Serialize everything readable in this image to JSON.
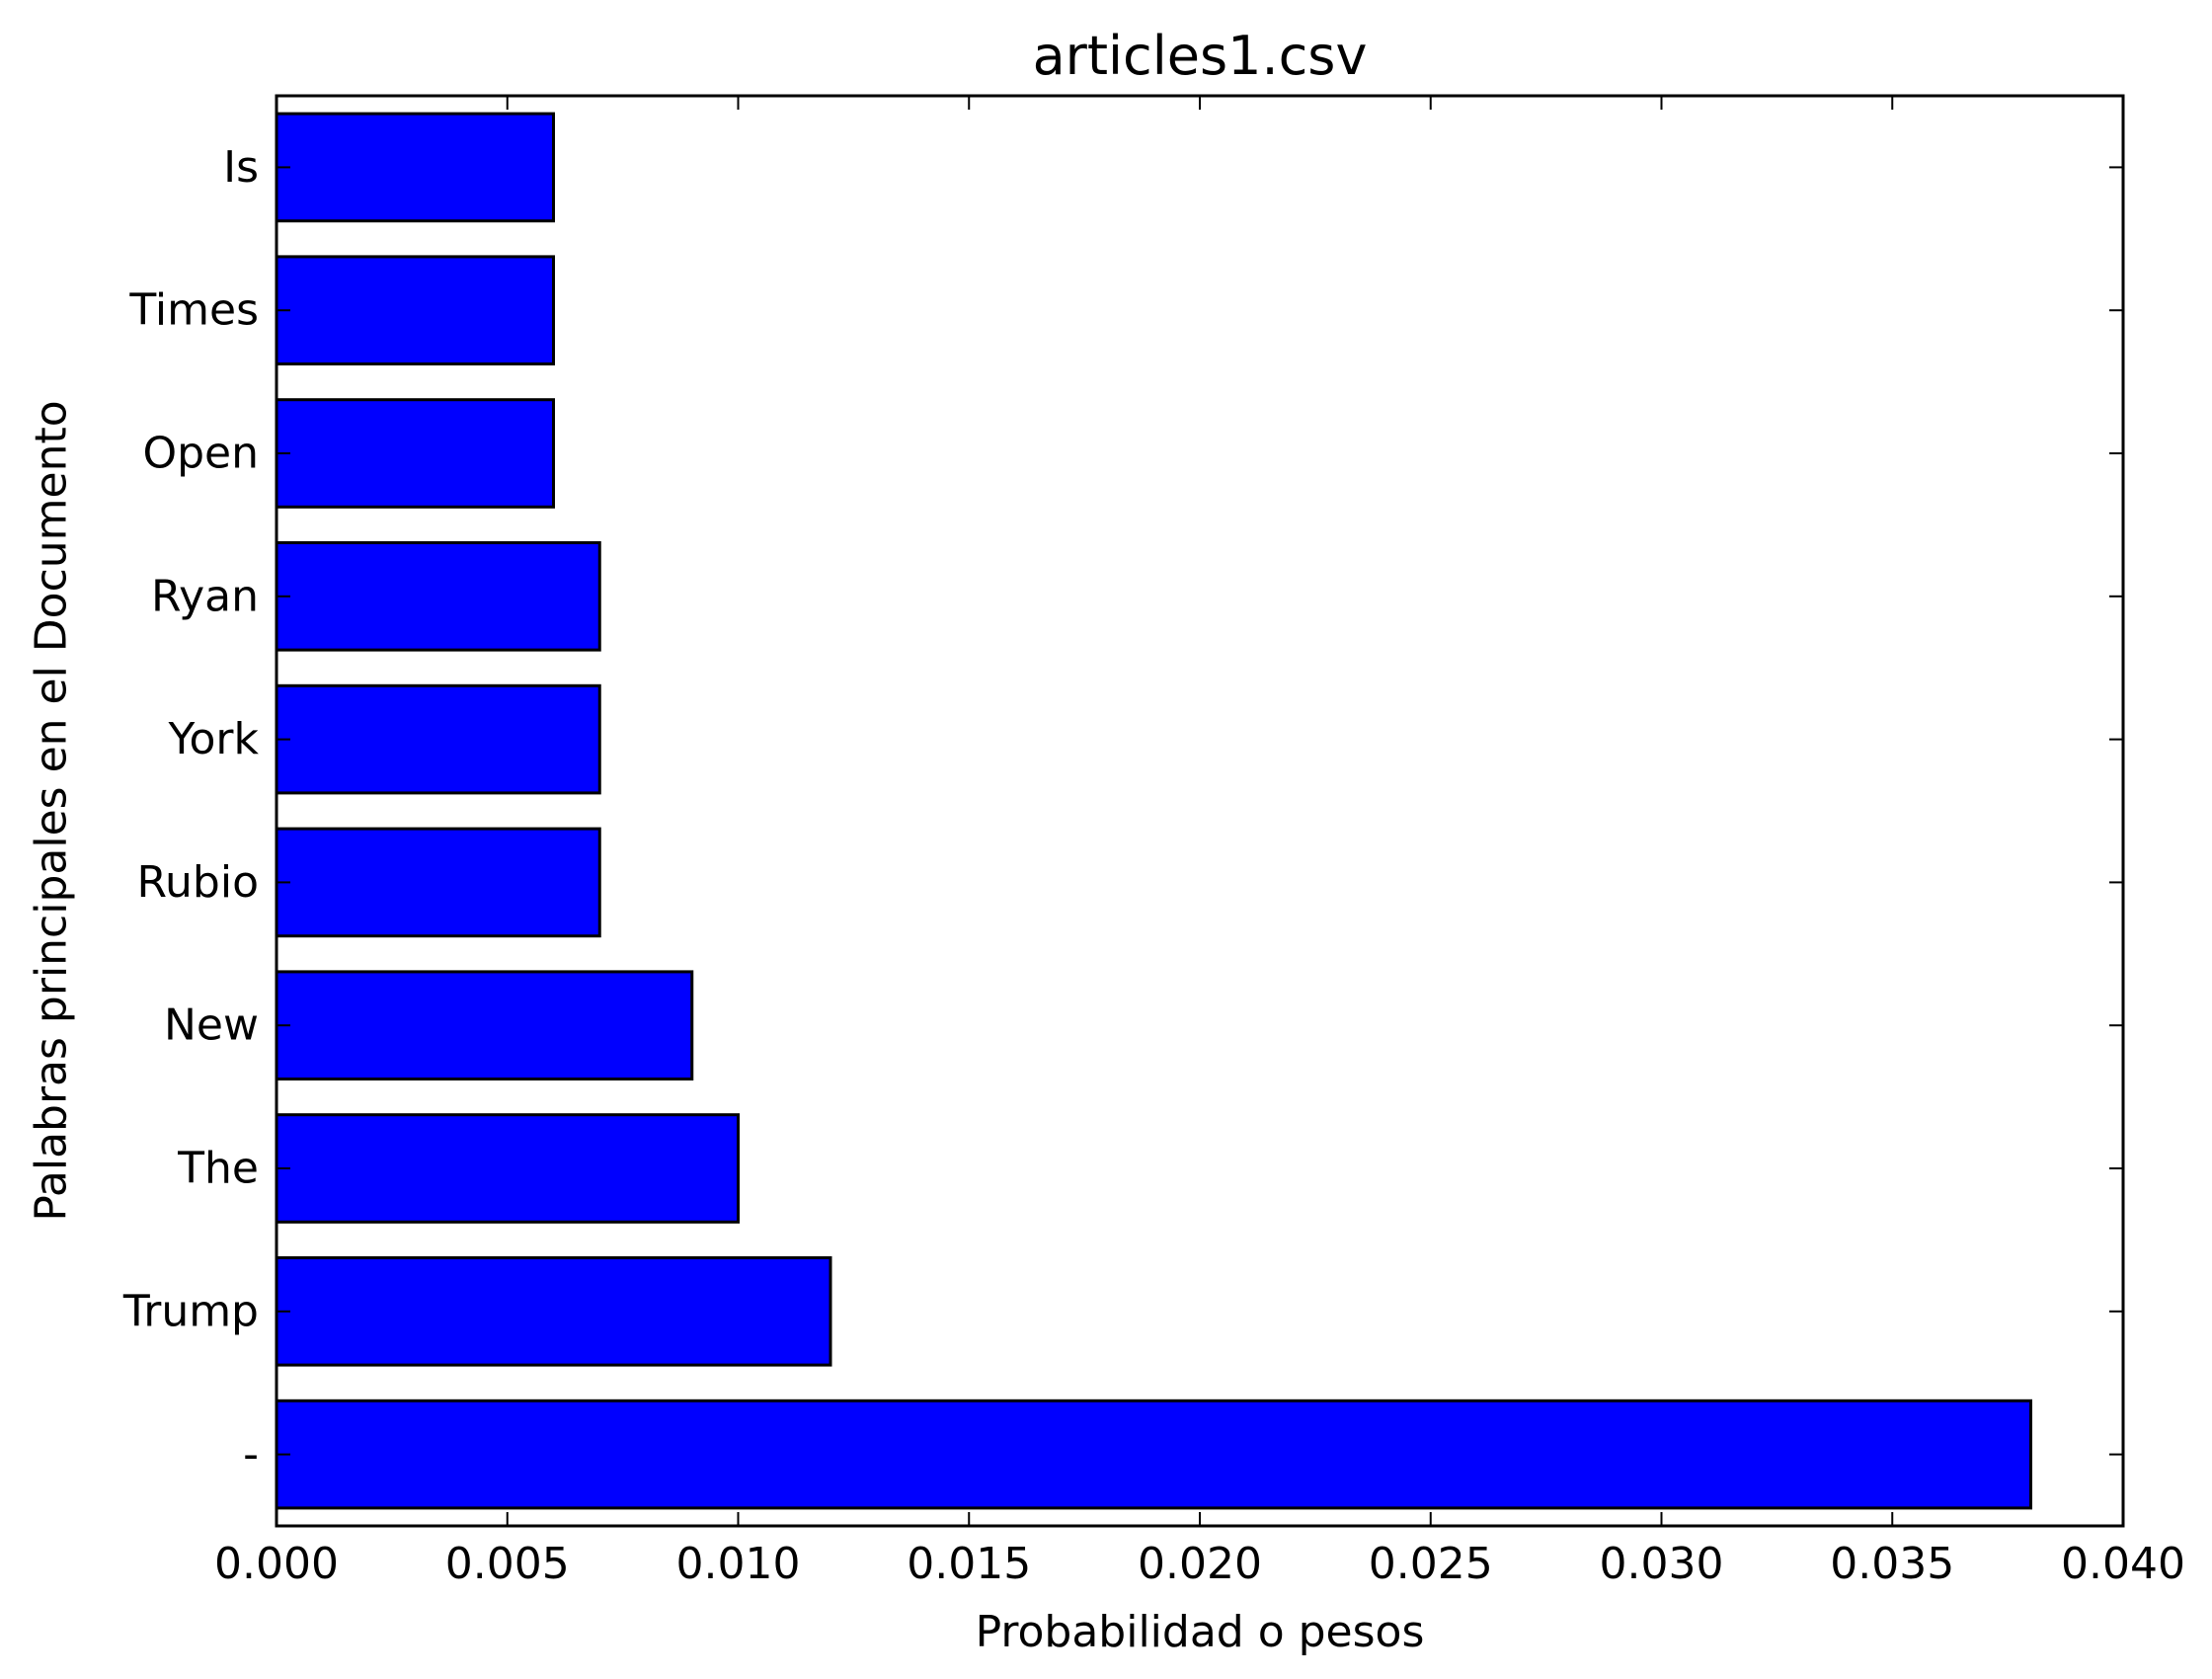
{
  "chart_data": {
    "type": "bar",
    "orientation": "horizontal",
    "title": "articles1.csv",
    "xlabel": "Probabilidad o pesos",
    "ylabel": "Palabras principales en el Documento",
    "categories": [
      "-",
      "Trump",
      "The",
      "New",
      "Rubio",
      "York",
      "Ryan",
      "Open",
      "Times",
      "Is"
    ],
    "values": [
      0.038,
      0.012,
      0.01,
      0.009,
      0.007,
      0.007,
      0.007,
      0.006,
      0.006,
      0.006
    ],
    "xlim": [
      0,
      0.04
    ],
    "xticks": [
      "0.000",
      "0.005",
      "0.010",
      "0.015",
      "0.020",
      "0.025",
      "0.030",
      "0.035",
      "0.040"
    ],
    "bar_color": "#0000ff",
    "edge_color": "#000000",
    "grid": false,
    "legend": false
  }
}
